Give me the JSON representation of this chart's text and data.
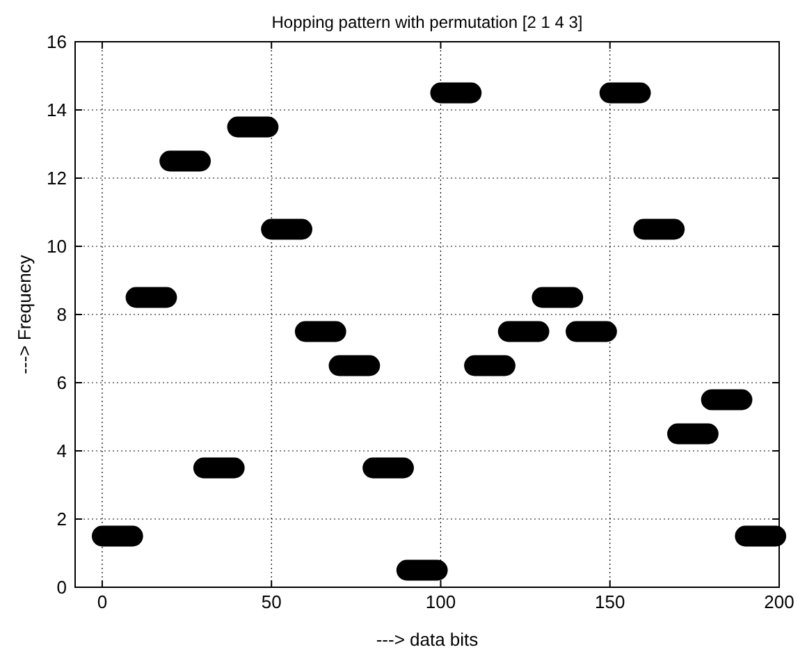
{
  "chart_data": {
    "type": "line",
    "title": "Hopping pattern with permutation [2 1 4 3]",
    "xlabel": "---> data bits",
    "ylabel": "---> Frequency",
    "series": [
      {
        "color": "#000000",
        "x": [
          0,
          9,
          9.5,
          10,
          19,
          19.5,
          20,
          29,
          29.5,
          30,
          39,
          39.5,
          40,
          49,
          49.5,
          50,
          59,
          59.5,
          60,
          69,
          69.5,
          70,
          79,
          79.5,
          80,
          89,
          89.5,
          90,
          99,
          99.5,
          100,
          109,
          109.5,
          110,
          119,
          119.5,
          120,
          129,
          129.5,
          130,
          139,
          139.5,
          140,
          149,
          149.5,
          150,
          159,
          159.5,
          160,
          169,
          169.5,
          170,
          179,
          179.5,
          180,
          189,
          189.5,
          190,
          199
        ],
        "values": [
          1.5,
          1.5,
          null,
          8.5,
          8.5,
          null,
          12.5,
          12.5,
          null,
          3.5,
          3.5,
          null,
          13.5,
          13.5,
          null,
          10.5,
          10.5,
          null,
          7.5,
          7.5,
          null,
          6.5,
          6.5,
          null,
          3.5,
          3.5,
          null,
          0.5,
          0.5,
          null,
          14.5,
          14.5,
          null,
          6.5,
          6.5,
          null,
          7.5,
          7.5,
          null,
          8.5,
          8.5,
          null,
          7.5,
          7.5,
          null,
          14.5,
          14.5,
          null,
          10.5,
          10.5,
          null,
          4.5,
          4.5,
          null,
          5.5,
          5.5,
          null,
          1.5,
          1.5
        ]
      }
    ],
    "xlim": [
      -8,
      200
    ],
    "xticks": [
      0,
      50,
      100,
      150,
      200
    ],
    "ylim": [
      0,
      16
    ],
    "yticks": [
      0,
      2,
      4,
      6,
      8,
      10,
      12,
      14,
      16
    ],
    "grid": true,
    "line_style": "solid"
  }
}
